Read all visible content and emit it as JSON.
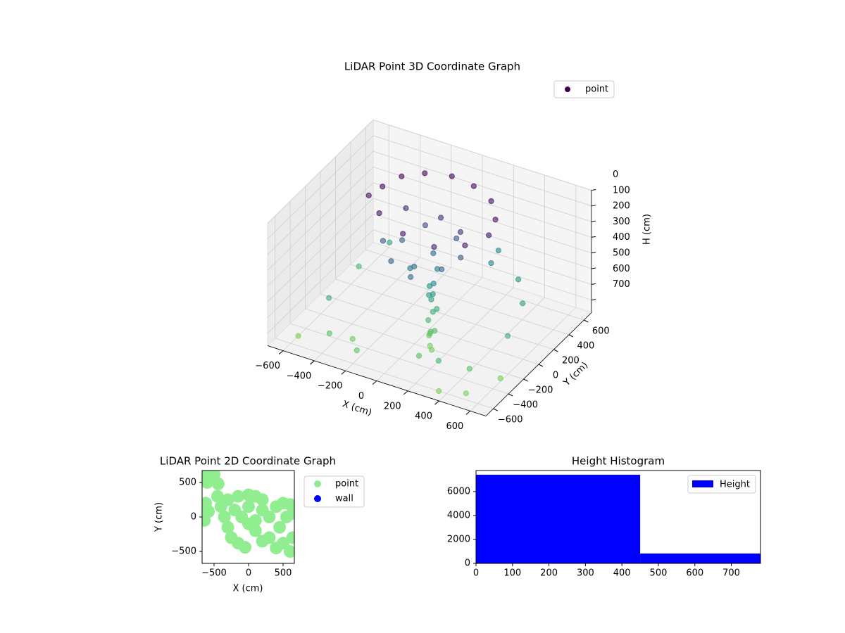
{
  "chart_data": [
    {
      "type": "scatter3d",
      "title": "LiDAR Point 3D Coordinate Graph",
      "xlabel": "X (cm)",
      "ylabel": "Y (cm)",
      "zlabel": "H (cm)",
      "colormap": "viridis",
      "legend": "upper right",
      "grid": true,
      "xlim": [
        -700,
        700
      ],
      "ylim": [
        -700,
        700
      ],
      "zlim": [
        780,
        0
      ],
      "xticks": [
        {
          "value": -600,
          "label": "−600"
        },
        {
          "value": -400,
          "label": "−400"
        },
        {
          "value": -200,
          "label": "−200"
        },
        0,
        200,
        400,
        600
      ],
      "yticks": [
        {
          "value": -600,
          "label": "−600"
        },
        {
          "value": -400,
          "label": "−400"
        },
        {
          "value": -200,
          "label": "−200"
        },
        0,
        200,
        400,
        600
      ],
      "zticks": [
        0,
        100,
        200,
        300,
        400,
        500,
        600,
        700
      ],
      "series": [
        {
          "name": "point",
          "color": "#440154",
          "x": [
            -350,
            -300,
            -200,
            -50,
            100,
            250,
            350,
            380,
            300,
            150,
            -50,
            -250,
            -380,
            -200,
            0,
            150,
            -250,
            -150,
            0,
            150,
            200,
            100,
            -100,
            -200,
            -50,
            50,
            0,
            -100,
            50,
            60,
            40,
            70,
            50,
            80,
            60,
            100,
            30,
            90,
            20,
            110,
            70,
            120,
            -500,
            -400,
            -200,
            300,
            450,
            500,
            400,
            550,
            -550,
            200,
            -300,
            600,
            350,
            -600,
            500,
            250,
            -450,
            150
          ],
          "y": [
            100,
            250,
            350,
            400,
            380,
            300,
            150,
            0,
            -150,
            -250,
            -250,
            -150,
            -20,
            100,
            150,
            100,
            -100,
            -200,
            -250,
            -150,
            0,
            150,
            150,
            50,
            -100,
            0,
            50,
            -50,
            -50,
            -80,
            -60,
            -100,
            -120,
            -150,
            -130,
            -200,
            -70,
            -90,
            -40,
            -160,
            -140,
            -220,
            -300,
            -500,
            -550,
            -500,
            -400,
            200,
            350,
            -100,
            200,
            500,
            -400,
            -300,
            -600,
            -500,
            -550,
            300,
            400,
            -450
          ],
          "z": [
            30,
            20,
            15,
            10,
            15,
            25,
            40,
            60,
            80,
            90,
            70,
            50,
            40,
            120,
            140,
            160,
            250,
            300,
            330,
            280,
            260,
            240,
            220,
            300,
            350,
            380,
            320,
            400,
            450,
            500,
            550,
            600,
            650,
            700,
            740,
            760,
            520,
            580,
            480,
            680,
            720,
            770,
            600,
            700,
            720,
            650,
            700,
            550,
            500,
            600,
            650,
            450,
            750,
            760,
            780,
            780,
            770,
            420,
            560,
            690
          ]
        }
      ]
    },
    {
      "type": "scatter",
      "title": "LiDAR Point 2D Coordinate Graph",
      "xlabel": "X (cm)",
      "ylabel": "Y (cm)",
      "legend": "outside upper right",
      "xlim": [
        -673,
        663
      ],
      "ylim": [
        -673,
        673
      ],
      "xticks": [
        {
          "value": -500,
          "label": "−500"
        },
        0,
        500
      ],
      "yticks": [
        {
          "value": -500,
          "label": "−500"
        },
        0,
        500
      ],
      "series": [
        {
          "name": "point",
          "color": "#90ee90",
          "x": [
            -640,
            -600,
            -550,
            -500,
            -440,
            -620,
            -580,
            -640,
            -450,
            -400,
            -350,
            -300,
            -250,
            -150,
            -50,
            -300,
            -150,
            0,
            100,
            200,
            -200,
            -100,
            0,
            100,
            200,
            300,
            400,
            500,
            600,
            640,
            300,
            400,
            500,
            600,
            640,
            200,
            0,
            100,
            450,
            550
          ],
          "y": [
            600,
            500,
            560,
            620,
            480,
            200,
            80,
            -50,
            300,
            150,
            0,
            -150,
            -300,
            -380,
            -440,
            250,
            300,
            320,
            300,
            250,
            100,
            0,
            -100,
            -200,
            -350,
            -300,
            -450,
            -380,
            -500,
            -300,
            0,
            150,
            200,
            180,
            50,
            100,
            150,
            -50,
            -150,
            0
          ]
        },
        {
          "name": "wall",
          "color": "#0000ff",
          "x": [],
          "y": []
        }
      ]
    },
    {
      "type": "histogram",
      "title": "Height Histogram",
      "legend": "upper right",
      "bins": [
        0,
        450,
        780
      ],
      "xlim": [
        0,
        780
      ],
      "ylim": [
        0,
        7760
      ],
      "xticks": [
        0,
        100,
        200,
        300,
        400,
        500,
        600,
        700
      ],
      "yticks": [
        0,
        2000,
        4000,
        6000
      ],
      "series": [
        {
          "name": "Height",
          "color": "#0000ff",
          "values": [
            7410,
            824
          ]
        }
      ]
    }
  ]
}
